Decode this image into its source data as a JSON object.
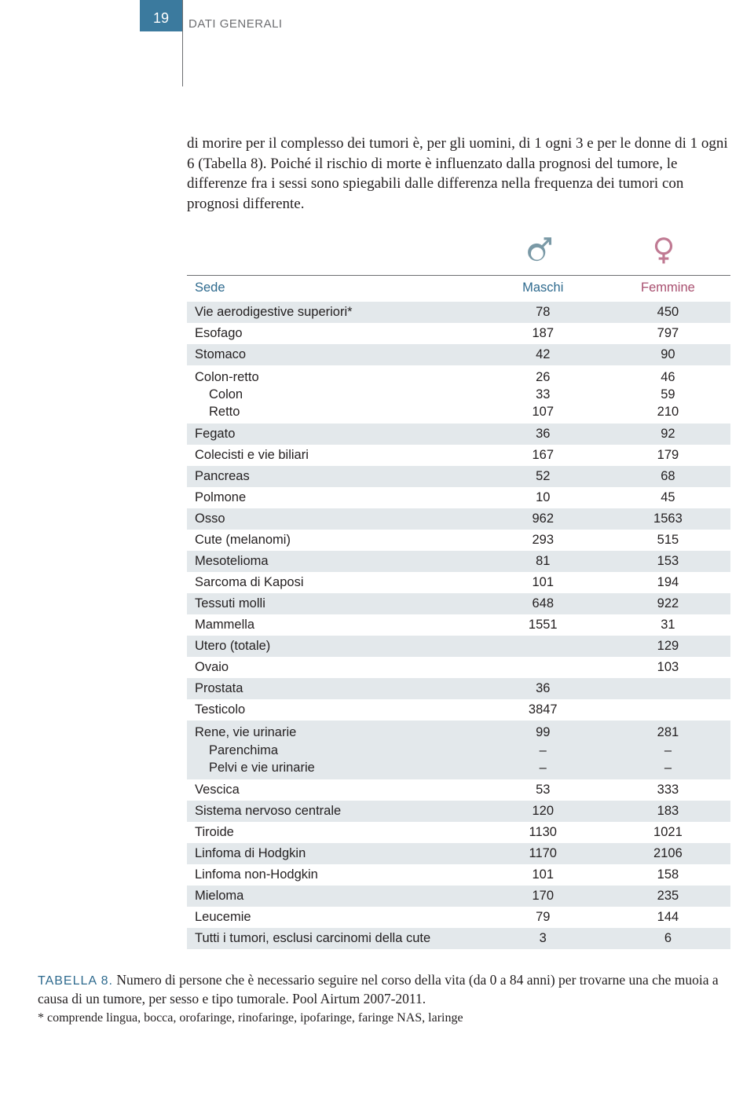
{
  "page_number": "19",
  "section_label": "DATI GENERALI",
  "intro_text": "di morire per il complesso dei tumori è, per gli uomini, di 1 ogni 3 e per le donne di 1 ogni 6 (Tabella 8). Poiché il rischio di morte è influenzato dalla prognosi del tumore, le differenze fra i sessi sono spiegabili dalle differenza nella frequenza dei tumori con prognosi differente.",
  "icons": {
    "male_color": "#7a99a6",
    "female_color": "#c07a93"
  },
  "table": {
    "header": {
      "sede": "Sede",
      "maschi": "Maschi",
      "femmine": "Femmine"
    },
    "rows": [
      {
        "shade": true,
        "label": "Vie aerodigestive superiori*",
        "m": "78",
        "f": "450"
      },
      {
        "shade": false,
        "label": "Esofago",
        "m": "187",
        "f": "797"
      },
      {
        "shade": true,
        "label": "Stomaco",
        "m": "42",
        "f": "90"
      },
      {
        "shade": false,
        "multi": true,
        "labels": [
          "Colon-retto",
          "Colon",
          "Retto"
        ],
        "ms": [
          "26",
          "33",
          "107"
        ],
        "fs": [
          "46",
          "59",
          "210"
        ]
      },
      {
        "shade": true,
        "label": "Fegato",
        "m": "36",
        "f": "92"
      },
      {
        "shade": false,
        "label": "Colecisti e vie biliari",
        "m": "167",
        "f": "179"
      },
      {
        "shade": true,
        "label": "Pancreas",
        "m": "52",
        "f": "68"
      },
      {
        "shade": false,
        "label": "Polmone",
        "m": "10",
        "f": "45"
      },
      {
        "shade": true,
        "label": "Osso",
        "m": "962",
        "f": "1563"
      },
      {
        "shade": false,
        "label": "Cute (melanomi)",
        "m": "293",
        "f": "515"
      },
      {
        "shade": true,
        "label": "Mesotelioma",
        "m": "81",
        "f": "153"
      },
      {
        "shade": false,
        "label": "Sarcoma di Kaposi",
        "m": "101",
        "f": "194"
      },
      {
        "shade": true,
        "label": "Tessuti molli",
        "m": "648",
        "f": "922"
      },
      {
        "shade": false,
        "label": "Mammella",
        "m": "1551",
        "f": "31"
      },
      {
        "shade": true,
        "label": "Utero (totale)",
        "m": "",
        "f": "129"
      },
      {
        "shade": false,
        "label": "Ovaio",
        "m": "",
        "f": "103"
      },
      {
        "shade": true,
        "label": "Prostata",
        "m": "36",
        "f": ""
      },
      {
        "shade": false,
        "label": "Testicolo",
        "m": "3847",
        "f": ""
      },
      {
        "shade": true,
        "multi": true,
        "labels": [
          "Rene, vie urinarie",
          "Parenchima",
          "Pelvi e vie urinarie"
        ],
        "ms": [
          "99",
          "–",
          "–"
        ],
        "fs": [
          "281",
          "–",
          "–"
        ]
      },
      {
        "shade": false,
        "label": "Vescica",
        "m": "53",
        "f": "333"
      },
      {
        "shade": true,
        "label": "Sistema nervoso centrale",
        "m": "120",
        "f": "183"
      },
      {
        "shade": false,
        "label": "Tiroide",
        "m": "1130",
        "f": "1021"
      },
      {
        "shade": true,
        "label": "Linfoma di Hodgkin",
        "m": "1170",
        "f": "2106"
      },
      {
        "shade": false,
        "label": "Linfoma non-Hodgkin",
        "m": "101",
        "f": "158"
      },
      {
        "shade": true,
        "label": "Mieloma",
        "m": "170",
        "f": "235"
      },
      {
        "shade": false,
        "label": "Leucemie",
        "m": "79",
        "f": "144"
      },
      {
        "shade": true,
        "label": "Tutti i tumori, esclusi carcinomi della cute",
        "m": "3",
        "f": "6"
      }
    ]
  },
  "caption": {
    "tag": "TABELLA 8.",
    "text": " Numero di persone che è necessario seguire nel corso della vita (da 0 a 84 anni) per trovarne una che muoia a causa di un tumore, per sesso e tipo tumorale. Pool Airtum 2007-2011."
  },
  "footnote": "* comprende lingua, bocca, orofaringe, rinofaringe, ipofaringe, faringe NAS, laringe",
  "colors": {
    "tab_bg": "#3b7a9e",
    "shade_bg": "#e3e8eb",
    "header_male": "#2e6a8e",
    "header_female": "#a84f6f",
    "rule": "#6d6e71"
  }
}
